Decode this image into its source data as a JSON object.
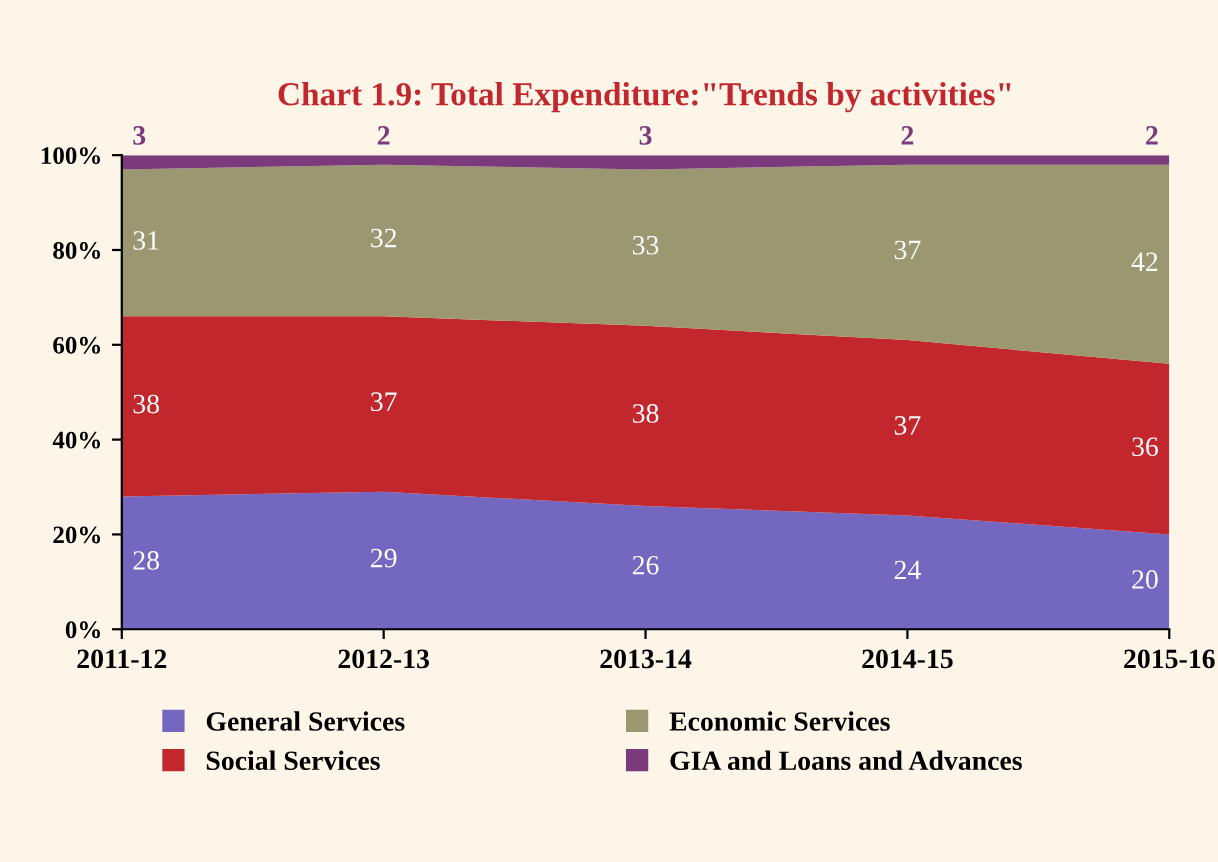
{
  "chart_data": {
    "type": "area",
    "title": "Chart 1.9: Total Expenditure:\"Trends by activities\"",
    "categories": [
      "2011-12",
      "2012-13",
      "2013-14",
      "2014-15",
      "2015-16"
    ],
    "stacked": true,
    "data_labels": true,
    "legend": "bottom",
    "grid": false,
    "ylim": [
      0,
      100
    ],
    "yticks": [
      {
        "value": 0,
        "label": "0%"
      },
      {
        "value": 20,
        "label": "20%"
      },
      {
        "value": 40,
        "label": "40%"
      },
      {
        "value": 60,
        "label": "60%"
      },
      {
        "value": 80,
        "label": "80%"
      },
      {
        "value": 100,
        "label": "100%"
      }
    ],
    "series": [
      {
        "name": "General Services",
        "color": "#7467c0",
        "values": [
          28,
          29,
          26,
          24,
          20
        ]
      },
      {
        "name": "Social Services",
        "color": "#c1272d",
        "values": [
          38,
          37,
          38,
          37,
          36
        ]
      },
      {
        "name": "Economic Services",
        "color": "#9b9871",
        "values": [
          31,
          32,
          33,
          37,
          42
        ]
      },
      {
        "name": "GIA and Loans and Advances",
        "color": "#7b3a7c",
        "values": [
          3,
          2,
          3,
          2,
          2
        ]
      }
    ]
  }
}
